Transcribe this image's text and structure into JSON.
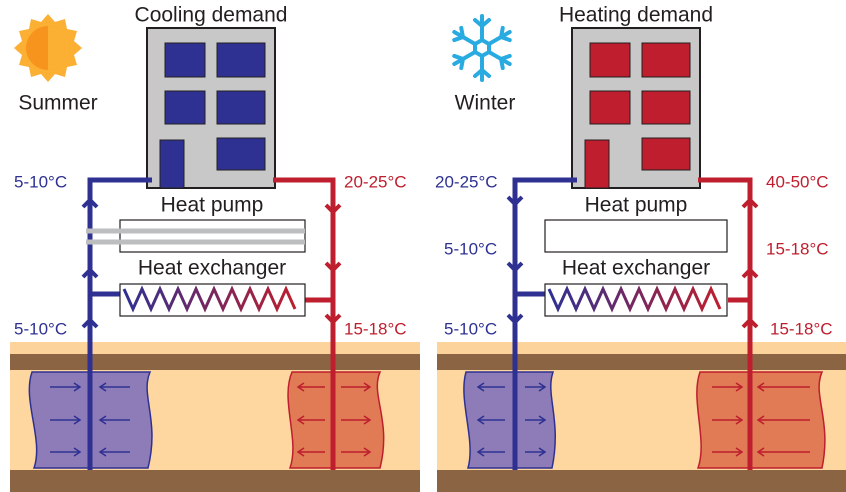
{
  "panels": [
    {
      "demand": "Cooling demand",
      "season": "Summer",
      "heat_pump": "Heat pump",
      "heat_exchanger": "Heat exchanger",
      "temps": {
        "top_left": "5-10°C",
        "top_right": "20-25°C",
        "bottom_left": "5-10°C",
        "bottom_right": "15-18°C"
      }
    },
    {
      "demand": "Heating demand",
      "season": "Winter",
      "heat_pump": "Heat pump",
      "heat_exchanger": "Heat exchanger",
      "temps": {
        "top_left": "20-25°C",
        "top_right": "40-50°C",
        "mid_left": "5-10°C",
        "mid_right": "15-18°C",
        "bottom_left": "5-10°C",
        "bottom_right": "15-18°C"
      }
    }
  ]
}
